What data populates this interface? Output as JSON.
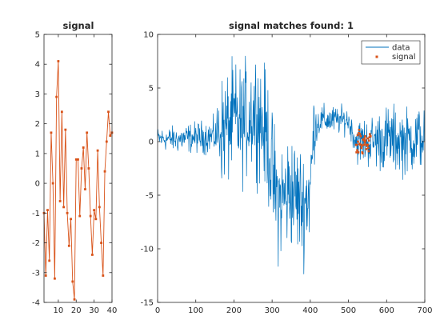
{
  "colors": {
    "series_blue": "#0072BD",
    "series_orange": "#D95319",
    "axis": "#262626",
    "background": "#ffffff"
  },
  "chart_data": [
    {
      "type": "line",
      "title": "signal",
      "xlim": [
        2,
        40
      ],
      "ylim": [
        -4,
        5
      ],
      "x_ticks": [
        10,
        20,
        30,
        40
      ],
      "y_ticks": [
        -4,
        -3,
        -2,
        -1,
        0,
        1,
        2,
        3,
        4,
        5
      ],
      "series": [
        {
          "color": "#D95319",
          "marker": "square",
          "x": [
            2,
            3,
            4,
            5,
            6,
            7,
            8,
            9,
            10,
            11,
            12,
            13,
            14,
            15,
            16,
            17,
            18,
            19,
            20,
            21,
            22,
            23,
            24,
            25,
            26,
            27,
            28,
            29,
            30,
            31,
            32,
            33,
            34,
            35,
            36,
            37,
            38,
            39,
            40
          ],
          "values": [
            -1.0,
            -3.1,
            -0.9,
            -2.6,
            1.7,
            0.0,
            -3.2,
            2.9,
            4.1,
            -0.6,
            2.4,
            -0.8,
            1.8,
            -1.0,
            -2.1,
            -1.2,
            -3.3,
            -3.9,
            0.8,
            0.8,
            -1.1,
            0.5,
            1.2,
            -0.2,
            1.7,
            0.5,
            -1.1,
            -2.4,
            -0.9,
            -1.2,
            1.1,
            -0.8,
            -2.0,
            -3.1,
            0.4,
            1.4,
            2.4,
            1.6,
            1.7
          ]
        }
      ]
    },
    {
      "type": "line",
      "title": "signal matches found: 1",
      "xlim": [
        0,
        700
      ],
      "ylim": [
        -15,
        10
      ],
      "x_ticks": [
        0,
        100,
        200,
        300,
        400,
        500,
        600,
        700
      ],
      "y_ticks": [
        -15,
        -10,
        -5,
        0,
        5,
        10
      ],
      "legend": {
        "placement": "top-right",
        "entries": [
          "data",
          "signal"
        ]
      },
      "series": [
        {
          "name": "data",
          "color": "#0072BD",
          "style": "line",
          "trend_x": [
            0,
            50,
            100,
            150,
            160,
            180,
            200,
            220,
            240,
            260,
            280,
            290,
            300,
            310,
            320,
            350,
            380,
            400,
            410,
            430,
            450,
            480,
            500,
            520,
            560,
            600,
            650,
            700
          ],
          "trend_y": [
            0.3,
            0.2,
            0.4,
            0.5,
            1.0,
            1.2,
            2.0,
            1.5,
            2.5,
            3.0,
            1.0,
            0.0,
            -3.0,
            -5.0,
            -5.5,
            -4.5,
            -6.0,
            -4.5,
            1.5,
            2.0,
            2.0,
            2.0,
            2.0,
            0.0,
            0.0,
            0.3,
            0.0,
            0.5
          ],
          "noise_x": [
            0,
            150,
            170,
            290,
            310,
            400,
            420,
            510,
            520,
            560,
            600,
            700
          ],
          "noise_amp": [
            0.5,
            0.8,
            2.5,
            2.8,
            2.8,
            2.5,
            0.7,
            0.6,
            1.0,
            1.2,
            1.5,
            1.5
          ]
        },
        {
          "name": "signal",
          "color": "#D95319",
          "style": "dots",
          "x": [
            520,
            521,
            522,
            523,
            524,
            525,
            526,
            527,
            528,
            529,
            530,
            531,
            532,
            533,
            534,
            535,
            536,
            537,
            538,
            539,
            540,
            541,
            542,
            543,
            544,
            545,
            546,
            547,
            548,
            549,
            550,
            551,
            552,
            553,
            554,
            555,
            556,
            557,
            558
          ],
          "values": [
            -0.3,
            -1.0,
            -0.3,
            -0.8,
            0.6,
            0.0,
            -1.0,
            0.8,
            1.1,
            -0.2,
            0.7,
            -0.3,
            0.5,
            -0.3,
            -0.6,
            -0.4,
            -1.0,
            -1.1,
            0.2,
            0.2,
            -0.3,
            0.1,
            0.3,
            -0.1,
            0.5,
            0.1,
            -0.3,
            -0.7,
            -0.3,
            -0.4,
            0.3,
            -0.3,
            -0.6,
            -0.9,
            0.1,
            0.4,
            0.7,
            0.5,
            0.5
          ]
        }
      ]
    }
  ]
}
